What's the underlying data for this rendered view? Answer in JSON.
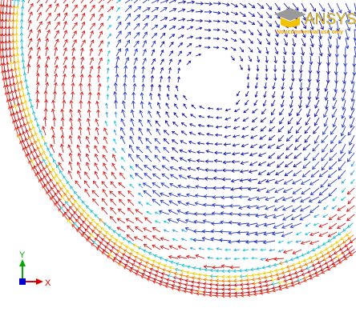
{
  "logo": {
    "brand": "ANSYS",
    "note": "Noncommercial use only"
  },
  "triad": {
    "y": "Y",
    "x": "X"
  }
}
